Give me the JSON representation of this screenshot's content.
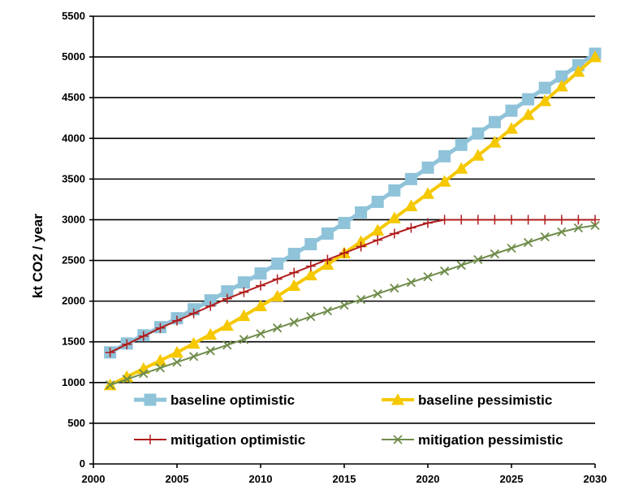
{
  "chart_data": {
    "type": "line",
    "title": "",
    "xlabel": "",
    "ylabel": "kt CO2 / year",
    "xlim": [
      2000,
      2030
    ],
    "ylim": [
      0,
      5500
    ],
    "xticks": [
      2000,
      2005,
      2010,
      2015,
      2020,
      2025,
      2030
    ],
    "yticks": [
      0,
      500,
      1000,
      1500,
      2000,
      2500,
      3000,
      3500,
      4000,
      4500,
      5000,
      5500
    ],
    "grid": "horizontal",
    "legend_position": "bottom-inside",
    "x": [
      2001,
      2002,
      2003,
      2004,
      2005,
      2006,
      2007,
      2008,
      2009,
      2010,
      2011,
      2012,
      2013,
      2014,
      2015,
      2016,
      2017,
      2018,
      2019,
      2020,
      2021,
      2022,
      2023,
      2024,
      2025,
      2026,
      2027,
      2028,
      2029,
      2030
    ],
    "series": [
      {
        "name": "baseline optimistic",
        "color": "#8fc3d9",
        "marker": "square",
        "values": [
          1370,
          1480,
          1580,
          1680,
          1790,
          1900,
          2010,
          2120,
          2230,
          2340,
          2460,
          2580,
          2700,
          2830,
          2960,
          3090,
          3220,
          3360,
          3500,
          3640,
          3780,
          3920,
          4060,
          4200,
          4340,
          4480,
          4620,
          4760,
          4900,
          5040
        ]
      },
      {
        "name": "baseline pessimistic",
        "color": "#f5c800",
        "marker": "triangle",
        "values": [
          970,
          1070,
          1170,
          1270,
          1370,
          1480,
          1590,
          1700,
          1820,
          1940,
          2060,
          2190,
          2320,
          2450,
          2590,
          2730,
          2870,
          3020,
          3170,
          3320,
          3470,
          3630,
          3790,
          3950,
          4120,
          4290,
          4460,
          4640,
          4820,
          5000
        ]
      },
      {
        "name": "mitigation optimistic",
        "color": "#b01c1c",
        "marker": "plus",
        "values": [
          1370,
          1470,
          1570,
          1670,
          1760,
          1850,
          1940,
          2030,
          2110,
          2190,
          2270,
          2350,
          2430,
          2510,
          2590,
          2670,
          2750,
          2830,
          2900,
          2960,
          3000,
          3000,
          3000,
          3000,
          3000,
          3000,
          3000,
          3000,
          3000,
          3000
        ]
      },
      {
        "name": "mitigation pessimistic",
        "color": "#6f8c4a",
        "marker": "x",
        "values": [
          970,
          1040,
          1110,
          1180,
          1250,
          1320,
          1390,
          1460,
          1530,
          1600,
          1670,
          1740,
          1810,
          1880,
          1950,
          2020,
          2090,
          2160,
          2230,
          2300,
          2370,
          2440,
          2510,
          2580,
          2650,
          2720,
          2790,
          2850,
          2900,
          2930
        ]
      }
    ]
  }
}
